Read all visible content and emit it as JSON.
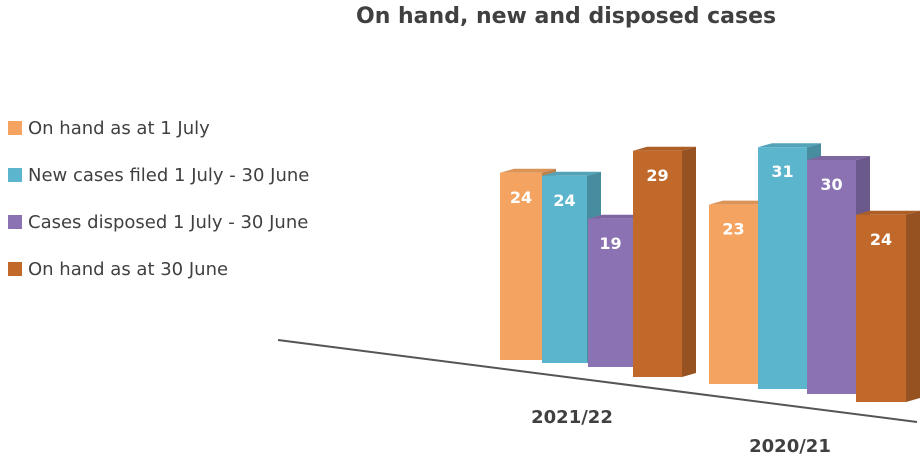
{
  "chart_data": {
    "type": "bar",
    "title": "On hand, new and disposed cases",
    "categories": [
      "2021/22",
      "2020/21"
    ],
    "series": [
      {
        "name": "On hand as at 1 July",
        "values": [
          24,
          23
        ],
        "color": "#f4a460"
      },
      {
        "name": "New cases filed 1 July - 30 June",
        "values": [
          24,
          31
        ],
        "color": "#5bb5cc"
      },
      {
        "name": "Cases disposed 1 July - 30 June",
        "values": [
          19,
          30
        ],
        "color": "#8b72b3"
      },
      {
        "name": "On hand as at 30 June",
        "values": [
          29,
          24
        ],
        "color": "#c0692a"
      }
    ],
    "legend_position": "left",
    "grid": false,
    "style": "3d-perspective"
  }
}
